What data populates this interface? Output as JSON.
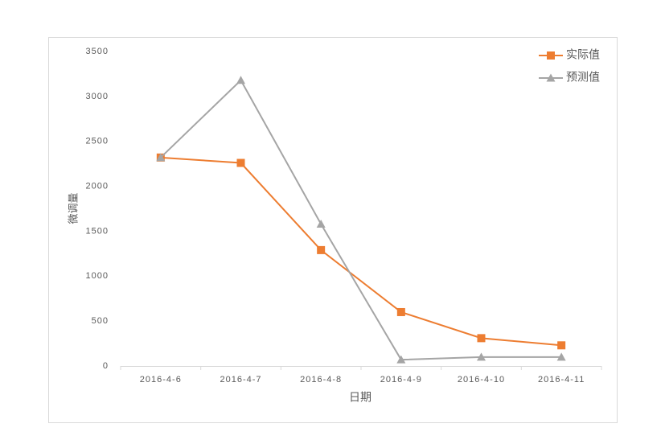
{
  "chart_data": {
    "type": "line",
    "x_label": "日期",
    "y_label": "微调量",
    "categories": [
      "2016-4-6",
      "2016-4-7",
      "2016-4-8",
      "2016-4-9",
      "2016-4-10",
      "2016-4-11"
    ],
    "series": [
      {
        "name": "实际值",
        "color": "#ed7d31",
        "marker": "square",
        "values": [
          2320,
          2260,
          1290,
          600,
          310,
          230
        ]
      },
      {
        "name": "预测值",
        "color": "#a5a5a5",
        "marker": "triangle",
        "values": [
          2320,
          3180,
          1580,
          70,
          100,
          100
        ]
      }
    ],
    "ylim": [
      0,
      3500
    ],
    "yticks": [
      0,
      500,
      1000,
      1500,
      2000,
      2500,
      3000,
      3500
    ],
    "grid": false,
    "legend": "top-right"
  }
}
